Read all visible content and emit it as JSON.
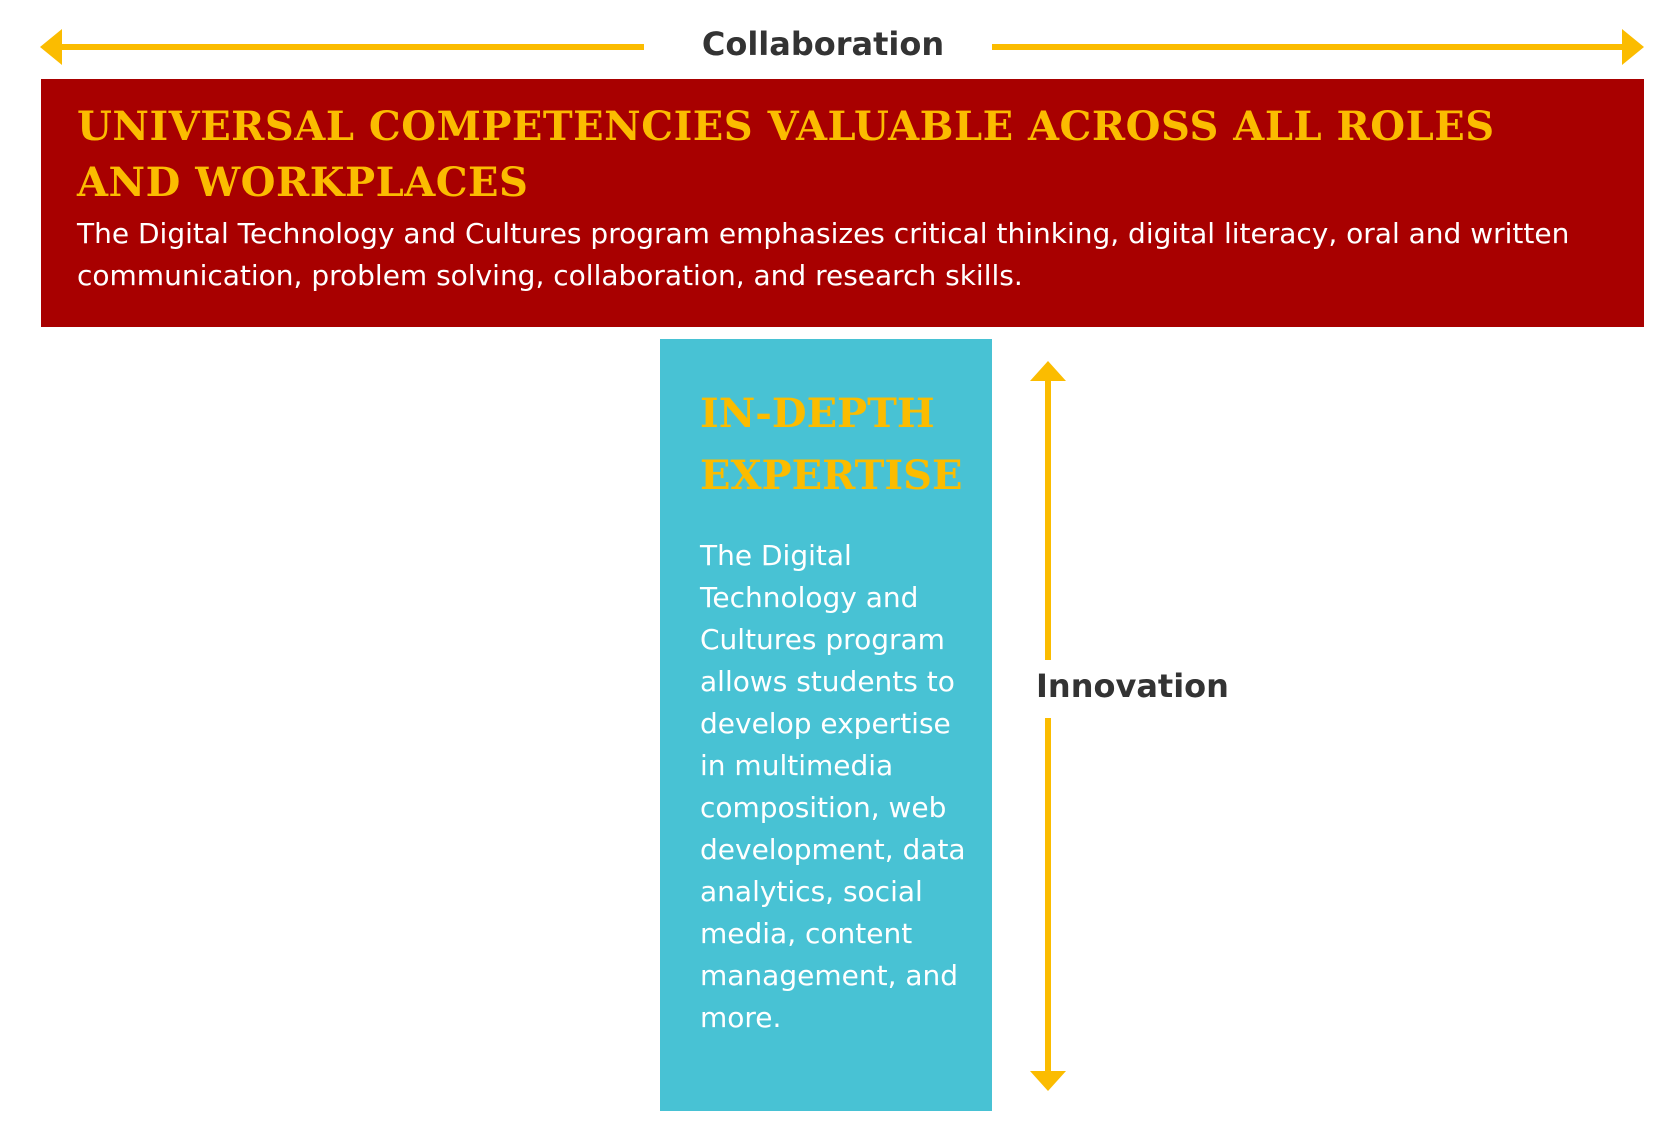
{
  "colors": {
    "red_box": "#a80000",
    "blue_box": "#48c2d4",
    "accent_yellow": "#fbbc00",
    "label_dark": "#333333",
    "body_text": "#ffffff"
  },
  "axes": {
    "horizontal_label": "Collaboration",
    "vertical_label": "Innovation",
    "horizontal_icon": "double-headed-horizontal-arrow",
    "vertical_icon": "double-headed-vertical-arrow"
  },
  "universal": {
    "title": "UNIVERSAL COMPETENCIES VALUABLE ACROSS ALL ROLES AND WORKPLACES",
    "body": "The Digital Technology and Cultures program emphasizes critical thinking, digital literacy, oral and written communication, problem solving, collaboration, and research skills."
  },
  "expertise": {
    "title": "IN-DEPTH EXPERTISE",
    "body": "The Digital Technology and Cultures program allows students to develop expertise in multimedia composition, web development, data analytics, social media, content management, and more."
  }
}
